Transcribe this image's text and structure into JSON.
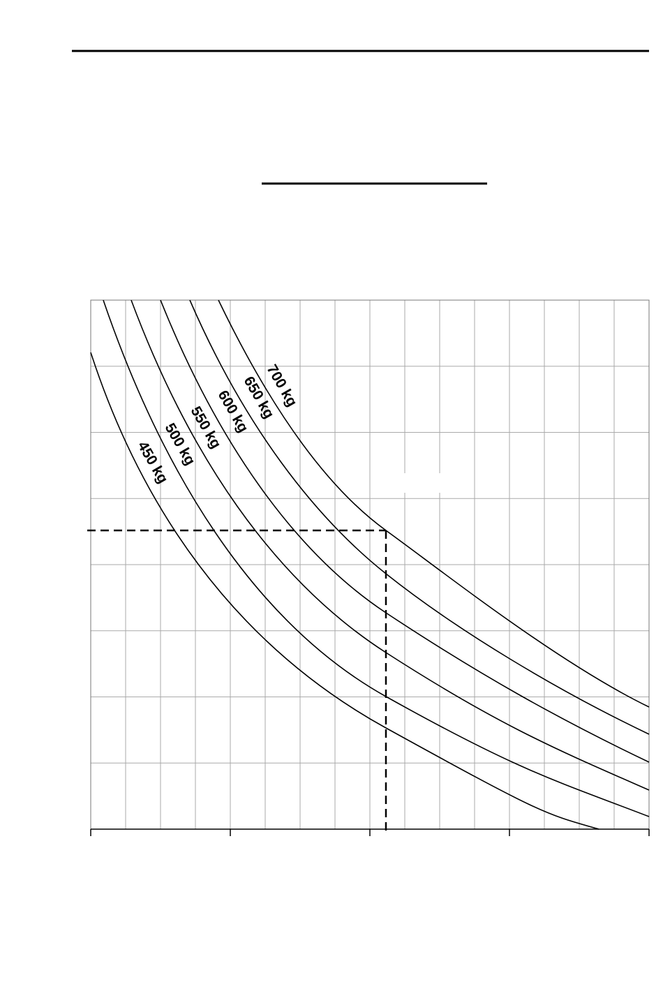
{
  "curve_labels": [
    "450 kg",
    "500 kg",
    "550 kg",
    "600 kg",
    "650 kg",
    "700 kg"
  ]
}
